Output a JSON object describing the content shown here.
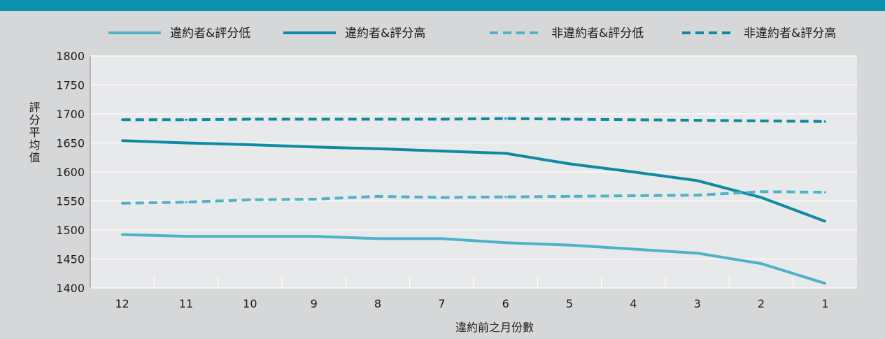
{
  "colors": {
    "top_band": "#0b93ad",
    "background": "#d6d7d9",
    "plot_background": "#e8e9eb",
    "grid": "#ffffff",
    "series_light": "#4db3c5",
    "series_dark": "#0e8aa3"
  },
  "chart_data": {
    "type": "line",
    "title": "",
    "xlabel": "違約前之月份數",
    "ylabel": "評分平均值",
    "categories": [
      "12",
      "11",
      "10",
      "9",
      "8",
      "7",
      "6",
      "5",
      "4",
      "3",
      "2",
      "1"
    ],
    "ylim": [
      1400,
      1800
    ],
    "yticks": [
      1400,
      1450,
      1500,
      1550,
      1600,
      1650,
      1700,
      1750,
      1800
    ],
    "grid": "horizontal",
    "legend_position": "top",
    "series": [
      {
        "name": "違約者&評分低",
        "style": "solid",
        "color": "#4db3c5",
        "values": [
          1492,
          1489,
          1489,
          1489,
          1485,
          1485,
          1478,
          1474,
          1467,
          1460,
          1442,
          1408
        ]
      },
      {
        "name": "違約者&評分高",
        "style": "solid",
        "color": "#0e8aa3",
        "values": [
          1654,
          1650,
          1647,
          1643,
          1640,
          1636,
          1632,
          1614,
          1600,
          1585,
          1556,
          1515
        ]
      },
      {
        "name": "非違約者&評分低",
        "style": "dashed",
        "color": "#4db3c5",
        "values": [
          1546,
          1548,
          1552,
          1553,
          1558,
          1556,
          1557,
          1558,
          1559,
          1560,
          1566,
          1565
        ]
      },
      {
        "name": "非違約者&評分高",
        "style": "dashed",
        "color": "#0e8aa3",
        "values": [
          1690,
          1690,
          1691,
          1691,
          1691,
          1691,
          1692,
          1691,
          1690,
          1689,
          1688,
          1687
        ]
      }
    ]
  }
}
